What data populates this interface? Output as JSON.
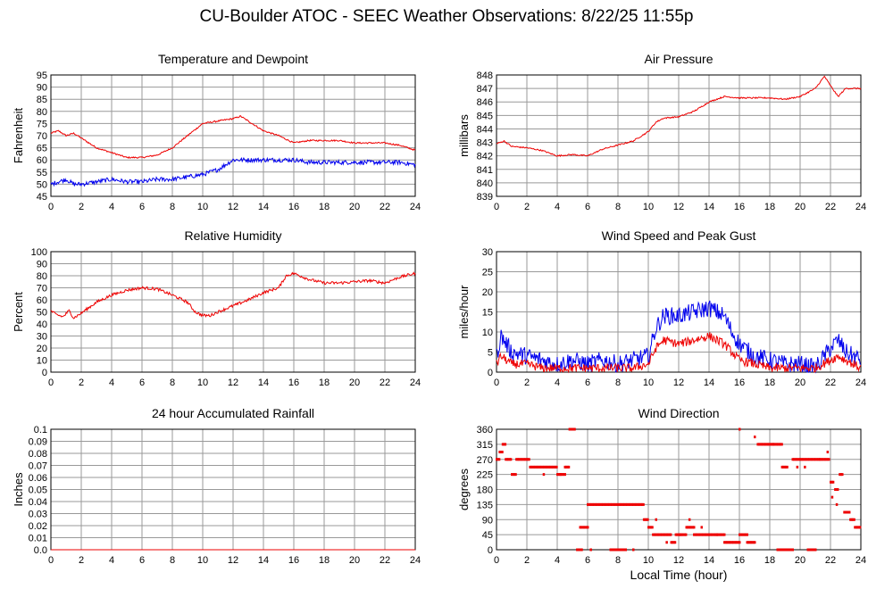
{
  "page": {
    "title": "CU-Boulder ATOC - SEEC Weather Observations: 8/22/25 11:55p",
    "xaxis_label": "Local Time (hour)"
  },
  "colors": {
    "red": "#ee0000",
    "blue": "#0000ee",
    "grid": "#999999"
  },
  "chart_data": [
    {
      "type": "line",
      "title": "Temperature and Dewpoint",
      "ylabel": "Fahrenheit",
      "xlim": [
        0,
        24
      ],
      "ylim": [
        45,
        95
      ],
      "xticks": [
        0,
        2,
        4,
        6,
        8,
        10,
        12,
        14,
        16,
        18,
        20,
        22,
        24
      ],
      "yticks": [
        45,
        50,
        55,
        60,
        65,
        70,
        75,
        80,
        85,
        90,
        95
      ],
      "grid": true,
      "series": [
        {
          "color": "#ee0000",
          "noise": 0.3,
          "x": [
            0,
            0.5,
            1,
            1.5,
            2,
            3,
            4,
            5,
            6,
            7,
            8,
            9,
            10,
            11,
            12,
            12.5,
            13,
            14,
            15,
            16,
            17,
            18,
            19,
            20,
            21,
            22,
            23,
            24
          ],
          "y": [
            71,
            72,
            70,
            71,
            69,
            65,
            63,
            61,
            61,
            62,
            65,
            70,
            75,
            76,
            77,
            78,
            76,
            72,
            70,
            67,
            68,
            68,
            68,
            67,
            67,
            67,
            66,
            64
          ]
        },
        {
          "color": "#0000ee",
          "noise": 0.9,
          "x": [
            0,
            0.5,
            1,
            1.5,
            2,
            3,
            4,
            5,
            6,
            7,
            8,
            9,
            10,
            11,
            12,
            13,
            14,
            15,
            16,
            17,
            18,
            19,
            20,
            21,
            22,
            23,
            24
          ],
          "y": [
            50,
            51,
            52,
            50,
            50,
            51,
            52,
            51,
            51,
            52,
            52,
            53,
            54,
            56,
            60,
            60,
            60,
            60,
            60,
            59,
            59,
            59,
            59,
            59,
            59,
            59,
            58
          ]
        }
      ]
    },
    {
      "type": "line",
      "title": "Air Pressure",
      "ylabel": "millibars",
      "xlim": [
        0,
        24
      ],
      "ylim": [
        839,
        848
      ],
      "xticks": [
        0,
        2,
        4,
        6,
        8,
        10,
        12,
        14,
        16,
        18,
        20,
        22,
        24
      ],
      "yticks": [
        839,
        840,
        841,
        842,
        843,
        844,
        845,
        846,
        847,
        848
      ],
      "grid": true,
      "series": [
        {
          "color": "#ee0000",
          "noise": 0.05,
          "x": [
            0,
            0.5,
            1,
            2,
            3,
            4,
            5,
            6,
            7,
            8,
            9,
            10,
            10.5,
            11,
            12,
            13,
            14,
            15,
            16,
            17,
            18,
            19,
            20,
            21,
            21.6,
            22,
            22.5,
            23,
            24
          ],
          "y": [
            842.9,
            843.1,
            842.7,
            842.6,
            842.4,
            842.0,
            842.1,
            842.0,
            842.5,
            842.8,
            843.1,
            843.8,
            844.5,
            844.8,
            844.9,
            845.3,
            846.0,
            846.4,
            846.3,
            846.3,
            846.3,
            846.2,
            846.4,
            847.0,
            847.9,
            847.2,
            846.4,
            847.0,
            847.0
          ]
        }
      ]
    },
    {
      "type": "line",
      "title": "Relative Humidity",
      "ylabel": "Percent",
      "xlim": [
        0,
        24
      ],
      "ylim": [
        0,
        100
      ],
      "xticks": [
        0,
        2,
        4,
        6,
        8,
        10,
        12,
        14,
        16,
        18,
        20,
        22,
        24
      ],
      "yticks": [
        0,
        10,
        20,
        30,
        40,
        50,
        60,
        70,
        80,
        90,
        100
      ],
      "grid": true,
      "series": [
        {
          "color": "#ee0000",
          "noise": 1.2,
          "x": [
            0,
            0.3,
            0.8,
            1.2,
            1.5,
            2,
            3,
            4,
            5,
            6,
            7,
            8,
            9,
            9.5,
            10,
            10.5,
            11,
            12,
            13,
            14,
            15,
            15.5,
            16,
            17,
            18,
            19,
            20,
            21,
            22,
            23,
            24
          ],
          "y": [
            51,
            48,
            46,
            51,
            45,
            49,
            58,
            64,
            68,
            70,
            69,
            64,
            58,
            50,
            47,
            47,
            50,
            55,
            60,
            66,
            70,
            80,
            82,
            77,
            74,
            74,
            75,
            76,
            74,
            79,
            82
          ]
        }
      ]
    },
    {
      "type": "line",
      "title": "Wind Speed and Peak Gust",
      "ylabel": "miles/hour",
      "xlim": [
        0,
        24
      ],
      "ylim": [
        0,
        30
      ],
      "xticks": [
        0,
        2,
        4,
        6,
        8,
        10,
        12,
        14,
        16,
        18,
        20,
        22,
        24
      ],
      "yticks": [
        0,
        5,
        10,
        15,
        20,
        25,
        30
      ],
      "grid": true,
      "series": [
        {
          "color": "#0000ee",
          "noise": 2.2,
          "x": [
            0,
            0.3,
            1,
            2,
            3,
            4,
            5,
            6,
            7,
            8,
            9,
            10,
            10.5,
            11,
            12,
            13,
            14,
            15,
            15.5,
            16,
            17,
            18,
            19,
            20,
            21,
            22,
            22.5,
            23,
            24
          ],
          "y": [
            4,
            9,
            5,
            4,
            3,
            2,
            3,
            2,
            3,
            2,
            3,
            4,
            11,
            14,
            14,
            15,
            16,
            14,
            10,
            7,
            4,
            3,
            2,
            2,
            1,
            6,
            8,
            5,
            3
          ]
        },
        {
          "color": "#ee0000",
          "noise": 1.1,
          "x": [
            0,
            0.3,
            1,
            2,
            3,
            4,
            5,
            6,
            7,
            8,
            9,
            10,
            10.5,
            11,
            12,
            13,
            14,
            15,
            15.5,
            16,
            17,
            18,
            19,
            20,
            21,
            22,
            22.5,
            23,
            24
          ],
          "y": [
            2,
            4,
            2,
            2,
            1,
            1,
            1,
            1,
            1,
            1,
            1,
            2,
            6,
            8,
            7,
            8,
            9,
            7,
            5,
            3,
            2,
            1,
            1,
            1,
            1,
            3,
            4,
            3,
            1
          ]
        }
      ]
    },
    {
      "type": "line",
      "title": "24 hour Accumulated Rainfall",
      "ylabel": "Inches",
      "xlim": [
        0,
        24
      ],
      "ylim": [
        0,
        0.1
      ],
      "xticks": [
        0,
        2,
        4,
        6,
        8,
        10,
        12,
        14,
        16,
        18,
        20,
        22,
        24
      ],
      "yticks": [
        0.0,
        0.01,
        0.02,
        0.03,
        0.04,
        0.05,
        0.06,
        0.07,
        0.08,
        0.09,
        0.1
      ],
      "ytick_labels": [
        "0.0",
        "0.01",
        "0.02",
        "0.03",
        "0.04",
        "0.05",
        "0.06",
        "0.07",
        "0.08",
        "0.09",
        "0.1"
      ],
      "grid": true,
      "series": [
        {
          "color": "#ee0000",
          "noise": 0,
          "x": [
            0,
            24
          ],
          "y": [
            0,
            0
          ]
        }
      ]
    },
    {
      "type": "scatter",
      "title": "Wind Direction",
      "ylabel": "degrees",
      "xlim": [
        0,
        24
      ],
      "ylim": [
        0,
        360
      ],
      "xticks": [
        0,
        2,
        4,
        6,
        8,
        10,
        12,
        14,
        16,
        18,
        20,
        22,
        24
      ],
      "yticks": [
        0,
        45,
        90,
        135,
        180,
        225,
        270,
        315,
        360
      ],
      "grid": true,
      "segments": [
        [
          0.0,
          0.2,
          270
        ],
        [
          0.2,
          0.4,
          292
        ],
        [
          0.4,
          0.6,
          315
        ],
        [
          0.6,
          1.0,
          270
        ],
        [
          1.0,
          1.3,
          225
        ],
        [
          1.3,
          2.2,
          270
        ],
        [
          2.2,
          4.0,
          247
        ],
        [
          4.0,
          4.5,
          225
        ],
        [
          4.5,
          4.8,
          247
        ],
        [
          4.8,
          5.2,
          360
        ],
        [
          5.3,
          5.5,
          0
        ],
        [
          5.5,
          6.0,
          67
        ],
        [
          6.0,
          9.7,
          135
        ],
        [
          9.7,
          10.0,
          90
        ],
        [
          10.0,
          10.3,
          67
        ],
        [
          10.3,
          11.5,
          45
        ],
        [
          11.5,
          11.8,
          22
        ],
        [
          11.8,
          12.5,
          45
        ],
        [
          12.5,
          13.0,
          67
        ],
        [
          13.0,
          15.0,
          45
        ],
        [
          15.0,
          16.0,
          22
        ],
        [
          16.0,
          16.5,
          45
        ],
        [
          16.5,
          17.0,
          22
        ],
        [
          17.2,
          18.8,
          315
        ],
        [
          18.8,
          19.2,
          247
        ],
        [
          19.5,
          21.3,
          270
        ],
        [
          21.3,
          21.9,
          270
        ],
        [
          22.0,
          22.2,
          202
        ],
        [
          22.3,
          22.5,
          180
        ],
        [
          22.6,
          22.8,
          225
        ],
        [
          22.9,
          23.3,
          112
        ],
        [
          23.3,
          23.6,
          90
        ],
        [
          23.6,
          24.0,
          67
        ],
        [
          18.5,
          19.5,
          0
        ],
        [
          20.5,
          21.0,
          0
        ],
        [
          7.5,
          8.5,
          0
        ]
      ],
      "points": [
        [
          3.1,
          225
        ],
        [
          4.2,
          225
        ],
        [
          5.6,
          0
        ],
        [
          6.2,
          0
        ],
        [
          7.9,
          0
        ],
        [
          9.0,
          0
        ],
        [
          10.5,
          90
        ],
        [
          11.2,
          22
        ],
        [
          12.1,
          45
        ],
        [
          12.7,
          90
        ],
        [
          13.5,
          67
        ],
        [
          14.5,
          45
        ],
        [
          16.0,
          360
        ],
        [
          17.0,
          337
        ],
        [
          18.2,
          315
        ],
        [
          19.8,
          247
        ],
        [
          20.3,
          247
        ],
        [
          21.8,
          292
        ],
        [
          22.1,
          157
        ],
        [
          22.4,
          135
        ]
      ]
    }
  ]
}
